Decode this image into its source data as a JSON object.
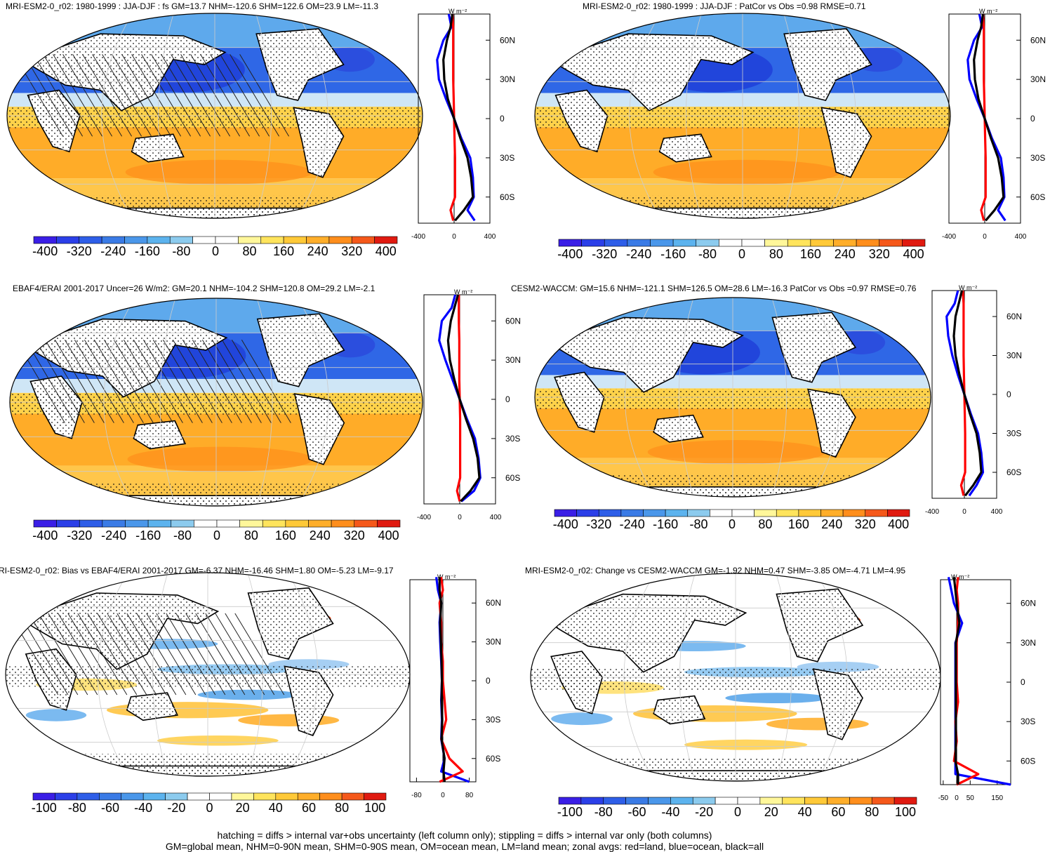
{
  "panels": [
    {
      "title": "MRI-ESM2-0_r02: 1980-1999 : JJA-DJF : fs GM=13.7 NHM=-120.6 SHM=122.6 OM=23.9 LM=-11.3",
      "colorbar_labels": [
        "-400",
        "-320",
        "-240",
        "-160",
        "-80",
        "0",
        "80",
        "160",
        "240",
        "320",
        "400"
      ],
      "zonal_x_ticks": [
        "-400",
        "0",
        "400"
      ],
      "zonal_y_ticks": [
        "60N",
        "30N",
        "0",
        "30S",
        "60S"
      ],
      "zonal_unit": "W m⁻²"
    },
    {
      "title": "MRI-ESM2-0_r02: 1980-1999 : JJA-DJF : PatCor vs Obs =0.98 RMSE=0.71",
      "colorbar_labels": [
        "-400",
        "-320",
        "-240",
        "-160",
        "-80",
        "0",
        "80",
        "160",
        "240",
        "320",
        "400"
      ],
      "zonal_x_ticks": [
        "-400",
        "0",
        "400"
      ],
      "zonal_y_ticks": [
        "60N",
        "30N",
        "0",
        "30S",
        "60S"
      ],
      "zonal_unit": "W m⁻²"
    },
    {
      "title": "EBAF4/ERAI 2001-2017 Uncer=26 W/m2: GM=20.1 NHM=-104.2 SHM=120.8 OM=29.2 LM=-2.1",
      "colorbar_labels": [
        "-400",
        "-320",
        "-240",
        "-160",
        "-80",
        "0",
        "80",
        "160",
        "240",
        "320",
        "400"
      ],
      "zonal_x_ticks": [
        "-400",
        "0",
        "400"
      ],
      "zonal_y_ticks": [
        "60N",
        "30N",
        "0",
        "30S",
        "60S"
      ],
      "zonal_unit": "W m⁻²"
    },
    {
      "title": "CESM2-WACCM: GM=15.6 NHM=-121.1 SHM=126.5 OM=28.6 LM=-16.3 PatCor vs Obs =0.97 RMSE=0.76",
      "colorbar_labels": [
        "-400",
        "-320",
        "-240",
        "-160",
        "-80",
        "0",
        "80",
        "160",
        "240",
        "320",
        "400"
      ],
      "zonal_x_ticks": [
        "-400",
        "0",
        "400"
      ],
      "zonal_y_ticks": [
        "60N",
        "30N",
        "0",
        "30S",
        "60S"
      ],
      "zonal_unit": "W m⁻²"
    },
    {
      "title": "RI-ESM2-0_r02: Bias vs EBAF4/ERAI 2001-2017 GM=-6.37 NHM=-16.46 SHM=1.80 OM=-5.23 LM=-9.17",
      "colorbar_labels": [
        "-100",
        "-80",
        "-60",
        "-40",
        "-20",
        "0",
        "20",
        "40",
        "60",
        "80",
        "100"
      ],
      "zonal_x_ticks": [
        "-80",
        "0",
        "80"
      ],
      "zonal_y_ticks": [
        "60N",
        "30N",
        "0",
        "30S",
        "60S"
      ],
      "zonal_unit": "W m⁻²"
    },
    {
      "title": "MRI-ESM2-0_r02: Change vs CESM2-WACCM GM=-1.92 NHM=0.47 SHM=-3.85 OM=-4.71 LM=4.95",
      "colorbar_labels": [
        "-100",
        "-80",
        "-60",
        "-40",
        "-20",
        "0",
        "20",
        "40",
        "60",
        "80",
        "100"
      ],
      "zonal_x_ticks": [
        "-50",
        "0",
        "50",
        "150"
      ],
      "zonal_y_ticks": [
        "60N",
        "30N",
        "0",
        "30S",
        "60S"
      ],
      "zonal_unit": "W m⁻²"
    }
  ],
  "footer": {
    "line1": "hatching = diffs > internal var+obs uncertainty (left column only); stippling = diffs > internal var only (both columns)",
    "line2": "GM=global mean, NHM=0-90N mean, SHM=0-90S mean, OM=ocean mean, LM=land mean; zonal avgs: red=land, blue=ocean, black=all"
  },
  "colors": {
    "colorbar": [
      "#3a1ee6",
      "#2b3fe8",
      "#2e5ee8",
      "#3a7be6",
      "#4a97ea",
      "#5cb3ee",
      "#8ccbee",
      "#ffffff",
      "#ffffff",
      "#fff79a",
      "#ffe45c",
      "#ffc938",
      "#ffae2a",
      "#ff8e1c",
      "#f5581a",
      "#e01a10"
    ],
    "land_zonal": "#ff0000",
    "ocean_zonal": "#0000ff",
    "all_zonal": "#000000"
  },
  "chart_data": [
    {
      "type": "heatmap",
      "map": "robinson",
      "title": "MRI-ESM2-0_r02: 1980-1999 : JJA-DJF : fs GM=13.7 NHM=-120.6 SHM=122.6 OM=23.9 LM=-11.3",
      "colorbar_range": [
        -400,
        400
      ],
      "zonal_avg_xlim": [
        -400,
        400
      ],
      "zonal_series": [
        {
          "name": "land",
          "lat": [
            80,
            70,
            60,
            45,
            30,
            15,
            0,
            -15,
            -30,
            -45,
            -60,
            -70,
            -78
          ],
          "values": [
            -20,
            -10,
            -10,
            -10,
            -10,
            -5,
            0,
            5,
            10,
            10,
            10,
            -40,
            -10
          ]
        },
        {
          "name": "ocean",
          "lat": [
            80,
            70,
            60,
            45,
            30,
            15,
            0,
            -15,
            -30,
            -45,
            -60,
            -70,
            -78
          ],
          "values": [
            -60,
            -30,
            -120,
            -190,
            -170,
            -90,
            0,
            80,
            180,
            210,
            220,
            150,
            230
          ]
        },
        {
          "name": "all",
          "lat": [
            80,
            70,
            60,
            45,
            30,
            15,
            0,
            -15,
            -30,
            -45,
            -60,
            -70,
            -78
          ],
          "values": [
            -20,
            -40,
            -80,
            -120,
            -110,
            -70,
            0,
            70,
            150,
            190,
            210,
            110,
            10
          ]
        }
      ]
    },
    {
      "type": "heatmap",
      "map": "robinson",
      "title": "MRI-ESM2-0_r02: 1980-1999 : JJA-DJF : PatCor vs Obs =0.98 RMSE=0.71",
      "colorbar_range": [
        -400,
        400
      ],
      "zonal_avg_xlim": [
        -400,
        400
      ],
      "zonal_series": [
        {
          "name": "land",
          "lat": [
            80,
            70,
            60,
            45,
            30,
            15,
            0,
            -15,
            -30,
            -45,
            -60,
            -70,
            -78
          ],
          "values": [
            -20,
            -10,
            -10,
            -10,
            -10,
            -5,
            0,
            5,
            10,
            10,
            10,
            -40,
            -10
          ]
        },
        {
          "name": "ocean",
          "lat": [
            80,
            70,
            60,
            45,
            30,
            15,
            0,
            -15,
            -30,
            -45,
            -60,
            -70,
            -78
          ],
          "values": [
            -60,
            -30,
            -120,
            -190,
            -170,
            -90,
            0,
            80,
            180,
            210,
            220,
            150,
            230
          ]
        },
        {
          "name": "all",
          "lat": [
            80,
            70,
            60,
            45,
            30,
            15,
            0,
            -15,
            -30,
            -45,
            -60,
            -70,
            -78
          ],
          "values": [
            -20,
            -40,
            -80,
            -120,
            -110,
            -70,
            0,
            70,
            150,
            190,
            210,
            110,
            10
          ]
        }
      ]
    },
    {
      "type": "heatmap",
      "map": "robinson",
      "title": "EBAF4/ERAI 2001-2017 Uncer=26 W/m2: GM=20.1 NHM=-104.2 SHM=120.8 OM=29.2 LM=-2.1",
      "colorbar_range": [
        -400,
        400
      ],
      "zonal_avg_xlim": [
        -400,
        400
      ],
      "zonal_series": [
        {
          "name": "land",
          "lat": [
            80,
            70,
            60,
            45,
            30,
            15,
            0,
            -15,
            -30,
            -45,
            -60,
            -70,
            -78
          ],
          "values": [
            -10,
            -10,
            -10,
            -5,
            -5,
            -5,
            0,
            5,
            5,
            5,
            5,
            -30,
            0
          ]
        },
        {
          "name": "ocean",
          "lat": [
            80,
            70,
            60,
            45,
            30,
            15,
            0,
            -15,
            -30,
            -45,
            -60,
            -70,
            -78
          ],
          "values": [
            -50,
            -90,
            -200,
            -230,
            -160,
            -80,
            0,
            80,
            170,
            210,
            230,
            160,
            20
          ]
        },
        {
          "name": "all",
          "lat": [
            80,
            70,
            60,
            45,
            30,
            15,
            0,
            -15,
            -30,
            -45,
            -60,
            -70,
            -78
          ],
          "values": [
            -20,
            -60,
            -100,
            -130,
            -110,
            -60,
            0,
            70,
            150,
            200,
            220,
            120,
            10
          ]
        }
      ]
    },
    {
      "type": "heatmap",
      "map": "robinson",
      "title": "CESM2-WACCM: GM=15.6 NHM=-121.1 SHM=126.5 OM=28.6 LM=-16.3 PatCor vs Obs =0.97 RMSE=0.76",
      "colorbar_range": [
        -400,
        400
      ],
      "zonal_avg_xlim": [
        -400,
        400
      ],
      "zonal_series": [
        {
          "name": "land",
          "lat": [
            80,
            70,
            60,
            45,
            30,
            15,
            0,
            -15,
            -30,
            -45,
            -60,
            -70,
            -78
          ],
          "values": [
            -20,
            -10,
            -10,
            -10,
            -10,
            -5,
            0,
            5,
            10,
            10,
            10,
            -40,
            -10
          ]
        },
        {
          "name": "ocean",
          "lat": [
            80,
            70,
            60,
            45,
            30,
            15,
            0,
            -15,
            -30,
            -45,
            -60,
            -70,
            -78
          ],
          "values": [
            -80,
            -120,
            -220,
            -200,
            -150,
            -80,
            0,
            80,
            170,
            210,
            230,
            150,
            60
          ]
        },
        {
          "name": "all",
          "lat": [
            80,
            70,
            60,
            45,
            30,
            15,
            0,
            -15,
            -30,
            -45,
            -60,
            -70,
            -78
          ],
          "values": [
            -30,
            -70,
            -110,
            -130,
            -110,
            -60,
            0,
            70,
            150,
            190,
            210,
            110,
            10
          ]
        }
      ]
    },
    {
      "type": "heatmap",
      "map": "robinson",
      "title": "RI-ESM2-0_r02: Bias vs EBAF4/ERAI 2001-2017 GM=-6.37 NHM=-16.46 SHM=1.80 OM=-5.23 LM=-9.17",
      "colorbar_range": [
        -100,
        100
      ],
      "zonal_avg_xlim": [
        -100,
        100
      ],
      "zonal_series": [
        {
          "name": "land",
          "lat": [
            80,
            70,
            60,
            45,
            30,
            15,
            0,
            -15,
            -30,
            -45,
            -60,
            -70,
            -78
          ],
          "values": [
            -5,
            0,
            -10,
            -5,
            -5,
            0,
            0,
            5,
            10,
            -5,
            20,
            60,
            -10
          ]
        },
        {
          "name": "ocean",
          "lat": [
            80,
            70,
            60,
            45,
            30,
            15,
            0,
            -15,
            -30,
            -45,
            -60,
            -70,
            -78
          ],
          "values": [
            -20,
            -15,
            -5,
            -10,
            -8,
            -5,
            -3,
            -5,
            -3,
            -5,
            5,
            -5,
            80
          ]
        },
        {
          "name": "all",
          "lat": [
            80,
            70,
            60,
            45,
            30,
            15,
            0,
            -15,
            -30,
            -45,
            -60,
            -70,
            -78
          ],
          "values": [
            -10,
            -10,
            -5,
            -8,
            -6,
            -4,
            -3,
            -4,
            -2,
            -4,
            5,
            2,
            5
          ]
        }
      ]
    },
    {
      "type": "heatmap",
      "map": "robinson",
      "title": "MRI-ESM2-0_r02: Change vs CESM2-WACCM GM=-1.92 NHM=0.47 SHM=-3.85 OM=-4.71 LM=4.95",
      "colorbar_range": [
        -100,
        100
      ],
      "zonal_avg_xlim": [
        -60,
        200
      ],
      "zonal_series": [
        {
          "name": "land",
          "lat": [
            80,
            70,
            60,
            45,
            30,
            15,
            0,
            -15,
            -30,
            -45,
            -60,
            -70,
            -78
          ],
          "values": [
            5,
            0,
            5,
            5,
            0,
            0,
            0,
            5,
            -5,
            0,
            -10,
            80,
            0
          ]
        },
        {
          "name": "ocean",
          "lat": [
            80,
            70,
            60,
            45,
            30,
            15,
            0,
            -15,
            -30,
            -45,
            -60,
            -70,
            -78
          ],
          "values": [
            -30,
            -20,
            -10,
            20,
            -5,
            -5,
            -5,
            -5,
            -5,
            -5,
            -5,
            -5,
            200
          ]
        },
        {
          "name": "all",
          "lat": [
            80,
            70,
            60,
            45,
            30,
            15,
            0,
            -15,
            -30,
            -45,
            -60,
            -70,
            -78
          ],
          "values": [
            -10,
            -5,
            0,
            10,
            -3,
            -3,
            -3,
            -3,
            -3,
            -3,
            -5,
            5,
            5
          ]
        }
      ]
    }
  ]
}
